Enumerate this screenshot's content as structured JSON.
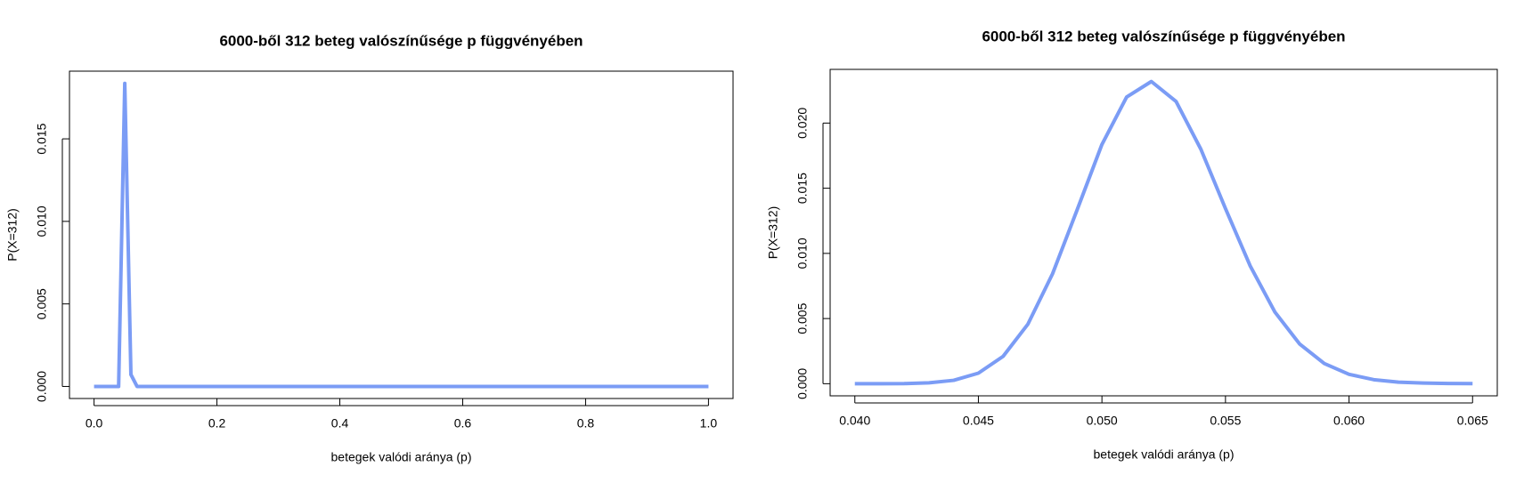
{
  "chart_data": [
    {
      "type": "line",
      "title": "6000-ből 312 beteg valószínűsége p függvényében",
      "x_label": "betegek valódi aránya (p)",
      "y_label": "P(X=312)",
      "x": [
        0,
        0.01,
        0.02,
        0.03,
        0.04,
        0.05,
        0.06,
        0.07,
        0.08,
        0.09,
        0.1,
        0.11,
        0.12,
        0.13,
        0.14,
        0.15,
        0.16,
        0.17,
        0.18,
        0.19,
        0.2,
        0.21,
        0.22,
        0.23,
        0.24,
        0.25,
        0.26,
        0.27,
        0.28,
        0.29,
        0.3,
        0.31,
        0.32,
        0.33,
        0.34,
        0.35,
        0.36,
        0.37,
        0.38,
        0.39,
        0.4,
        0.41,
        0.42,
        0.43,
        0.44,
        0.45,
        0.46,
        0.47,
        0.48,
        0.49,
        0.5,
        0.51,
        0.52,
        0.53,
        0.54,
        0.55,
        0.56,
        0.57,
        0.58,
        0.59,
        0.6,
        0.61,
        0.62,
        0.63,
        0.64,
        0.65,
        0.66,
        0.67,
        0.68,
        0.69,
        0.7,
        0.71,
        0.72,
        0.73,
        0.74,
        0.75,
        0.76,
        0.77,
        0.78,
        0.79,
        0.8,
        0.81,
        0.82,
        0.83,
        0.84,
        0.85,
        0.86,
        0.87,
        0.88,
        0.89,
        0.9,
        0.91,
        0.92,
        0.93,
        0.94,
        0.95,
        0.96,
        0.97,
        0.98,
        0.99,
        1
      ],
      "series": [
        {
          "color": "#7b9cf5",
          "values": [
            0,
            0,
            0,
            0,
            0,
            0.01836,
            0.00072,
            0,
            0,
            0,
            0,
            0,
            0,
            0,
            0,
            0,
            0,
            0,
            0,
            0,
            0,
            0,
            0,
            0,
            0,
            0,
            0,
            0,
            0,
            0,
            0,
            0,
            0,
            0,
            0,
            0,
            0,
            0,
            0,
            0,
            0,
            0,
            0,
            0,
            0,
            0,
            0,
            0,
            0,
            0,
            0,
            0,
            0,
            0,
            0,
            0,
            0,
            0,
            0,
            0,
            0,
            0,
            0,
            0,
            0,
            0,
            0,
            0,
            0,
            0,
            0,
            0,
            0,
            0,
            0,
            0,
            0,
            0,
            0,
            0,
            0,
            0,
            0,
            0,
            0,
            0,
            0,
            0,
            0,
            0,
            0,
            0,
            0,
            0,
            0,
            0,
            0,
            0,
            0,
            0,
            0
          ]
        }
      ],
      "xlim": [
        -0.04,
        1.04
      ],
      "ylim": [
        -0.00073,
        0.0191
      ],
      "xticks": [
        {
          "value": 0,
          "label": "0.0"
        },
        0.2,
        0.4,
        0.6,
        0.8,
        {
          "value": 1,
          "label": "1.0"
        }
      ],
      "yticks": [
        {
          "value": 0,
          "label": "0.000"
        },
        0.005,
        {
          "value": 0.01,
          "label": "0.010"
        },
        0.015
      ]
    },
    {
      "type": "line",
      "title": "6000-ből 312 beteg valószínűsége p függvényében",
      "x_label": "betegek valódi aránya (p)",
      "y_label": "P(X=312)",
      "x": [
        0.04,
        0.041,
        0.042,
        0.043,
        0.044,
        0.045,
        0.046,
        0.047,
        0.048,
        0.049,
        0.05,
        0.051,
        0.052,
        0.053,
        0.054,
        0.055,
        0.056,
        0.057,
        0.058,
        0.059,
        0.06,
        0.061,
        0.062,
        0.063,
        0.064,
        0.065
      ],
      "series": [
        {
          "color": "#7b9cf5",
          "values": [
            0,
            0,
            1e-05,
            7e-05,
            0.00026,
            0.00081,
            0.0021,
            0.00456,
            0.00843,
            0.01336,
            0.01836,
            0.022,
            0.02319,
            0.02166,
            0.01801,
            0.01344,
            0.00904,
            0.0055,
            0.00305,
            0.00155,
            0.00072,
            0.00031,
            0.00012,
            5e-05,
            2e-05,
            1e-05
          ]
        }
      ],
      "xlim": [
        0.039,
        0.066
      ],
      "ylim": [
        -0.00093,
        0.02412
      ],
      "xticks": [
        {
          "value": 0.04,
          "label": "0.040"
        },
        0.045,
        {
          "value": 0.05,
          "label": "0.050"
        },
        0.055,
        {
          "value": 0.06,
          "label": "0.060"
        },
        0.065
      ],
      "yticks": [
        {
          "value": 0,
          "label": "0.000"
        },
        0.005,
        {
          "value": 0.01,
          "label": "0.010"
        },
        0.015,
        {
          "value": 0.02,
          "label": "0.020"
        }
      ]
    }
  ]
}
